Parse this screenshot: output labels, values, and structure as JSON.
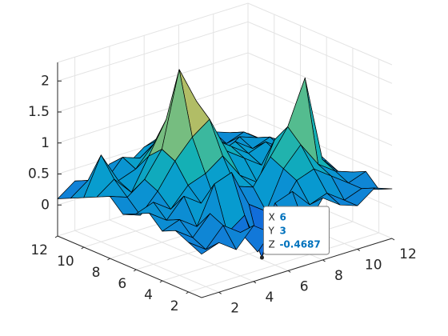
{
  "chart_data": {
    "type": "surface",
    "x": [
      1,
      2,
      3,
      4,
      5,
      6,
      7,
      8,
      9,
      10,
      11,
      12
    ],
    "y": [
      1,
      2,
      3,
      4,
      5,
      6,
      7,
      8,
      9,
      10,
      11,
      12
    ],
    "z": [
      [
        0.2,
        0.3,
        0.1,
        0.4,
        0.2,
        0.3,
        0.1,
        0.5,
        0.3,
        0.2,
        0.4,
        0.3
      ],
      [
        0.3,
        0.1,
        0.4,
        0.2,
        -0.2,
        0.5,
        0.6,
        0.3,
        0.4,
        0.2,
        0.3,
        0.2
      ],
      [
        0.4,
        0.2,
        0.5,
        0.1,
        0.3,
        -0.4687,
        0.2,
        0.6,
        0.7,
        0.5,
        0.3,
        0.4
      ],
      [
        0.3,
        0.4,
        0.2,
        0.8,
        0.9,
        0.3,
        0.1,
        0.7,
        1.0,
        0.6,
        0.4,
        0.3
      ],
      [
        0.5,
        0.3,
        0.6,
        0.4,
        0.2,
        0.5,
        0.4,
        0.8,
        1.2,
        1.9,
        0.5,
        0.2
      ],
      [
        0.4,
        0.5,
        0.3,
        0.6,
        0.7,
        0.9,
        0.5,
        0.3,
        0.9,
        0.7,
        0.4,
        0.3
      ],
      [
        0.3,
        0.2,
        0.5,
        0.9,
        1.2,
        1.4,
        0.8,
        0.6,
        0.4,
        0.5,
        0.3,
        0.4
      ],
      [
        0.5,
        0.4,
        0.6,
        1.0,
        2.2,
        1.6,
        0.9,
        0.7,
        0.5,
        0.6,
        0.4,
        0.3
      ],
      [
        0.4,
        0.6,
        0.3,
        0.8,
        1.3,
        1.1,
        0.7,
        0.5,
        0.6,
        0.4,
        0.5,
        0.3
      ],
      [
        0.3,
        0.9,
        0.4,
        0.5,
        0.8,
        0.6,
        0.5,
        0.4,
        0.3,
        0.5,
        0.4,
        0.3
      ],
      [
        0.2,
        0.4,
        0.3,
        0.6,
        0.5,
        0.7,
        0.4,
        0.6,
        0.5,
        0.3,
        0.4,
        0.2
      ],
      [
        0.1,
        0.3,
        0.2,
        0.4,
        0.3,
        0.5,
        0.6,
        0.4,
        0.3,
        0.4,
        0.3,
        0.2
      ]
    ],
    "xlim": [
      1,
      12
    ],
    "ylim": [
      1,
      12
    ],
    "zlim": [
      -0.5,
      2.3
    ],
    "xticks": [
      2,
      4,
      6,
      8,
      10,
      12
    ],
    "yticks": [
      2,
      4,
      6,
      8,
      10,
      12
    ],
    "zticks": [
      0,
      0.5,
      1,
      1.5,
      2
    ],
    "grid": true,
    "colormap": "parula",
    "datatip": {
      "labels": [
        "X",
        "Y",
        "Z"
      ],
      "x": 6,
      "y": 3,
      "z": -0.4687
    }
  }
}
